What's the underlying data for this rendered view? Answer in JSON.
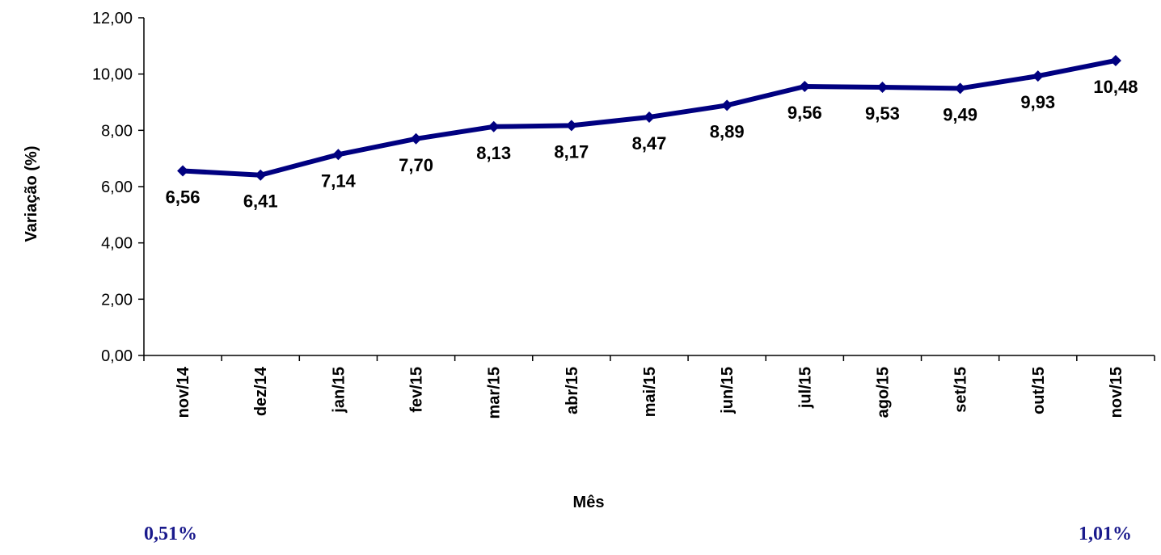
{
  "chart_data": {
    "type": "line",
    "title": "",
    "xlabel": "Mês",
    "ylabel": "Variação (%)",
    "categories": [
      "nov/14",
      "dez/14",
      "jan/15",
      "fev/15",
      "mar/15",
      "abr/15",
      "mai/15",
      "jun/15",
      "jul/15",
      "ago/15",
      "set/15",
      "out/15",
      "nov/15"
    ],
    "series": [
      {
        "values": [
          6.56,
          6.41,
          7.14,
          7.7,
          8.13,
          8.17,
          8.47,
          8.89,
          9.56,
          9.53,
          9.49,
          9.93,
          10.48
        ]
      }
    ],
    "data_labels": [
      "6,56",
      "6,41",
      "7,14",
      "7,70",
      "8,13",
      "8,17",
      "8,47",
      "8,89",
      "9,56",
      "9,53",
      "9,49",
      "9,93",
      "10,48"
    ],
    "ylim": [
      0,
      12
    ],
    "yticks": [
      0,
      2,
      4,
      6,
      8,
      10,
      12
    ],
    "ytick_labels": [
      "0,00",
      "2,00",
      "4,00",
      "6,00",
      "8,00",
      "10,00",
      "12,00"
    ],
    "grid": false,
    "legend": "none",
    "line_color": "#000080"
  },
  "footnotes": {
    "left": "0,51%",
    "right": "1,01%",
    "color": "#1a1a8c"
  }
}
